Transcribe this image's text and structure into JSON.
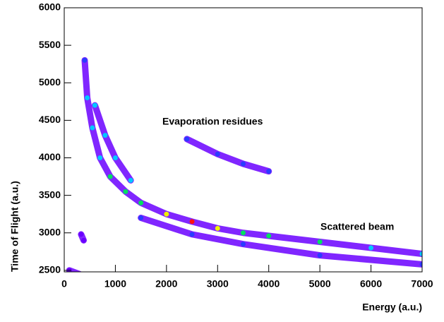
{
  "chart_data": {
    "type": "density",
    "x_label": "Energy (a.u.)",
    "y_label": "Time of Flight (a.u.)",
    "annotations": [
      "Evaporation residues",
      "Scattered beam"
    ],
    "xlim": [
      0,
      7000
    ],
    "xticks": [
      0,
      1000,
      2000,
      3000,
      4000,
      5000,
      6000,
      7000
    ],
    "ylim": [
      2480,
      6000
    ],
    "yticks": [
      2500,
      3000,
      3500,
      4000,
      4500,
      5000,
      5500,
      6000
    ],
    "palette": [
      "#6a00ff",
      "#2a3cff",
      "#00c8ff",
      "#00e060",
      "#f0f000",
      "#ff1010"
    ],
    "series": [
      {
        "x": [
          400,
          450,
          550,
          700,
          900,
          1200,
          1500,
          2000,
          2500,
          3000,
          3500,
          4000,
          5000,
          6000,
          7000
        ],
        "values": [
          5300,
          4800,
          4400,
          4000,
          3750,
          3550,
          3400,
          3250,
          3150,
          3060,
          3000,
          2960,
          2880,
          2800,
          2720
        ],
        "intensity": [
          1,
          2,
          2,
          2,
          3,
          3,
          3,
          4,
          5,
          4,
          3,
          3,
          3,
          2,
          2
        ]
      },
      {
        "x": [
          600,
          800,
          1000,
          1300
        ],
        "values": [
          4700,
          4300,
          4000,
          3700
        ],
        "intensity": [
          2,
          2,
          2,
          2
        ]
      },
      {
        "x": [
          1500,
          2500,
          3500,
          5000,
          7000
        ],
        "values": [
          3200,
          2980,
          2850,
          2700,
          2580
        ],
        "intensity": [
          1,
          1,
          1,
          1,
          1
        ]
      },
      {
        "x": [
          2400,
          3000,
          3500,
          4000
        ],
        "values": [
          4250,
          4050,
          3920,
          3820
        ],
        "intensity": [
          1,
          1,
          1,
          1
        ]
      },
      {
        "x": [
          330,
          380
        ],
        "values": [
          2980,
          2900
        ],
        "intensity": [
          0,
          0
        ]
      },
      {
        "x": [
          100,
          300
        ],
        "values": [
          2500,
          2450
        ],
        "intensity": [
          0,
          0
        ]
      }
    ]
  }
}
